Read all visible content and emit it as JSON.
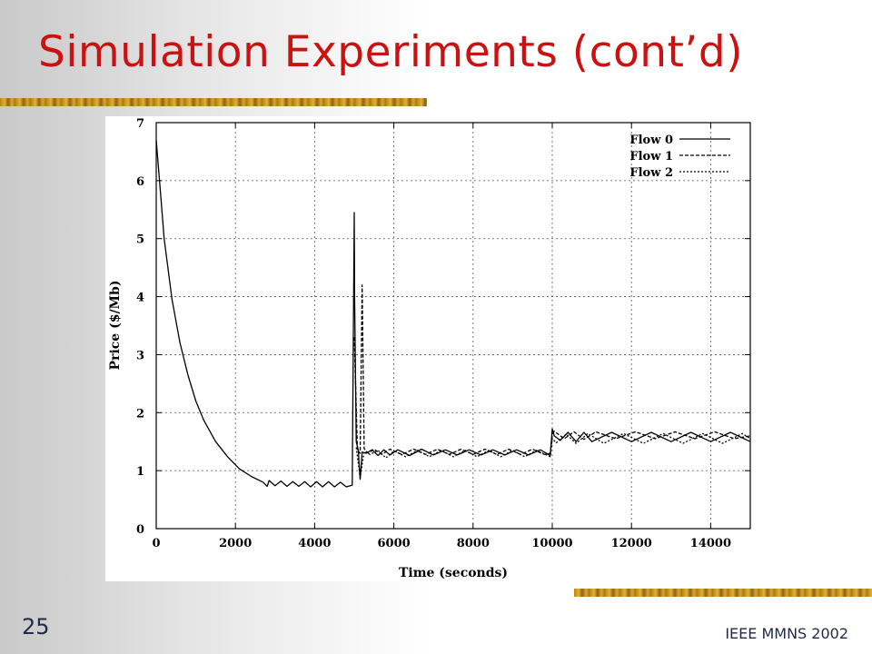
{
  "slide": {
    "title": "Simulation Experiments (cont’d)",
    "page_number": "25",
    "footer": "IEEE MMNS 2002"
  },
  "chart_data": {
    "type": "line",
    "xlabel": "Time (seconds)",
    "ylabel": "Price ($/Mb)",
    "xlim": [
      0,
      15000
    ],
    "ylim": [
      0,
      7
    ],
    "xticks": [
      0,
      2000,
      4000,
      6000,
      8000,
      10000,
      12000,
      14000
    ],
    "yticks": [
      0,
      1,
      2,
      3,
      4,
      5,
      6,
      7
    ],
    "grid": true,
    "legend_position": "top-right",
    "series": [
      {
        "name": "Flow 0",
        "style": "solid",
        "x": [
          0,
          100,
          200,
          400,
          600,
          800,
          1000,
          1200,
          1500,
          1800,
          2100,
          2400,
          2700,
          2800,
          2850,
          3000,
          3150,
          3300,
          3450,
          3600,
          3750,
          3900,
          4050,
          4200,
          4350,
          4500,
          4650,
          4800,
          4950,
          5000,
          5010,
          5050,
          5100,
          5150,
          5200,
          5300,
          5450,
          5600,
          5750,
          5900,
          6100,
          6400,
          6700,
          7000,
          7300,
          7600,
          7900,
          8200,
          8500,
          8800,
          9100,
          9400,
          9700,
          9950,
          10000,
          10050,
          10200,
          10400,
          10600,
          10800,
          11000,
          11500,
          12000,
          12500,
          13000,
          13500,
          14000,
          14500,
          15000
        ],
        "values": [
          6.7,
          5.85,
          5.0,
          3.95,
          3.2,
          2.65,
          2.2,
          1.87,
          1.5,
          1.24,
          1.03,
          0.9,
          0.8,
          0.73,
          0.83,
          0.74,
          0.82,
          0.73,
          0.81,
          0.73,
          0.81,
          0.72,
          0.81,
          0.72,
          0.81,
          0.72,
          0.8,
          0.72,
          0.75,
          5.45,
          4.0,
          1.5,
          1.36,
          0.85,
          1.32,
          1.3,
          1.36,
          1.26,
          1.36,
          1.27,
          1.36,
          1.26,
          1.37,
          1.27,
          1.36,
          1.27,
          1.36,
          1.27,
          1.36,
          1.27,
          1.36,
          1.27,
          1.36,
          1.26,
          1.72,
          1.6,
          1.52,
          1.66,
          1.5,
          1.66,
          1.5,
          1.66,
          1.5,
          1.66,
          1.5,
          1.66,
          1.5,
          1.66,
          1.5
        ]
      },
      {
        "name": "Flow 1",
        "style": "dashed",
        "x": [
          5000,
          5030,
          5080,
          5150,
          5200,
          5250,
          5350,
          5500,
          5700,
          5900,
          6200,
          6500,
          6800,
          7100,
          7400,
          7700,
          8000,
          8300,
          8600,
          8900,
          9200,
          9500,
          9800,
          9950,
          10000,
          10050,
          10300,
          10550,
          10800,
          11100,
          11600,
          12100,
          12600,
          13100,
          13600,
          14100,
          14600,
          15000
        ],
        "values": [
          3.3,
          2.6,
          1.35,
          1.3,
          4.2,
          1.38,
          1.3,
          1.37,
          1.28,
          1.37,
          1.28,
          1.37,
          1.28,
          1.37,
          1.28,
          1.37,
          1.28,
          1.37,
          1.28,
          1.37,
          1.28,
          1.37,
          1.28,
          1.3,
          1.62,
          1.68,
          1.55,
          1.67,
          1.54,
          1.67,
          1.55,
          1.67,
          1.55,
          1.67,
          1.55,
          1.67,
          1.55,
          1.6
        ]
      },
      {
        "name": "Flow 2",
        "style": "dotted",
        "x": [
          5050,
          5150,
          5250,
          5400,
          5600,
          5800,
          6000,
          6300,
          6600,
          6900,
          7200,
          7500,
          7800,
          8100,
          8400,
          8700,
          9000,
          9300,
          9600,
          9950,
          10000,
          10100,
          10350,
          10600,
          10900,
          11300,
          11800,
          12300,
          12800,
          13300,
          13800,
          14300,
          14800,
          15000
        ],
        "values": [
          1.4,
          0.88,
          1.33,
          1.28,
          1.35,
          1.22,
          1.34,
          1.24,
          1.35,
          1.24,
          1.35,
          1.24,
          1.35,
          1.24,
          1.35,
          1.24,
          1.35,
          1.24,
          1.35,
          1.24,
          1.55,
          1.48,
          1.63,
          1.47,
          1.64,
          1.47,
          1.64,
          1.47,
          1.64,
          1.47,
          1.64,
          1.47,
          1.64,
          1.55
        ]
      }
    ]
  }
}
